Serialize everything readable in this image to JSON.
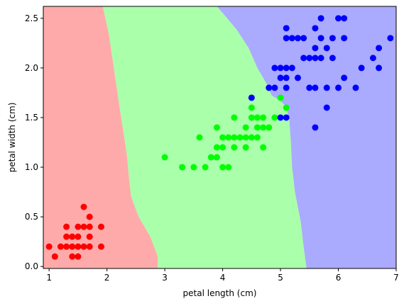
{
  "chart_data": {
    "type": "scatter",
    "xlabel": "petal length (cm)",
    "ylabel": "petal width (cm)",
    "xlim": [
      0.9,
      7.0
    ],
    "ylim": [
      -0.02,
      2.62
    ],
    "xticks": [
      1,
      2,
      3,
      4,
      5,
      6,
      7
    ],
    "yticks": [
      0.0,
      0.5,
      1.0,
      1.5,
      2.0,
      2.5
    ],
    "xtick_labels": [
      "1",
      "2",
      "3",
      "4",
      "5",
      "6",
      "7"
    ],
    "ytick_labels": [
      "0.0",
      "0.5",
      "1.0",
      "1.5",
      "2.0",
      "2.5"
    ],
    "grid": false,
    "regions": [
      {
        "color": "#ffaaaa"
      },
      {
        "color": "#aaffaa"
      },
      {
        "color": "#aaaaff"
      }
    ],
    "boundaries": {
      "red_green": [
        [
          2.88,
          -0.02
        ],
        [
          2.88,
          0.1
        ],
        [
          2.75,
          0.3
        ],
        [
          2.55,
          0.5
        ],
        [
          2.42,
          0.7
        ],
        [
          2.38,
          0.9
        ],
        [
          2.35,
          1.1
        ],
        [
          2.3,
          1.3
        ],
        [
          2.22,
          1.6
        ],
        [
          2.12,
          2.0
        ],
        [
          2.03,
          2.35
        ],
        [
          1.93,
          2.62
        ]
      ],
      "green_blue": [
        [
          5.45,
          -0.02
        ],
        [
          5.4,
          0.2
        ],
        [
          5.35,
          0.45
        ],
        [
          5.25,
          0.75
        ],
        [
          5.2,
          1.0
        ],
        [
          5.18,
          1.25
        ],
        [
          5.15,
          1.5
        ],
        [
          5.08,
          1.62
        ],
        [
          4.98,
          1.68
        ],
        [
          4.85,
          1.72
        ],
        [
          4.75,
          1.85
        ],
        [
          4.6,
          2.0
        ],
        [
          4.45,
          2.2
        ],
        [
          4.25,
          2.38
        ],
        [
          4.05,
          2.52
        ],
        [
          3.9,
          2.62
        ]
      ]
    },
    "series": [
      {
        "color": "#ff0000",
        "points": [
          [
            1.0,
            0.2
          ],
          [
            1.1,
            0.1
          ],
          [
            1.2,
            0.2
          ],
          [
            1.3,
            0.2
          ],
          [
            1.3,
            0.3
          ],
          [
            1.3,
            0.4
          ],
          [
            1.4,
            0.1
          ],
          [
            1.4,
            0.2
          ],
          [
            1.4,
            0.3
          ],
          [
            1.5,
            0.1
          ],
          [
            1.5,
            0.2
          ],
          [
            1.5,
            0.3
          ],
          [
            1.5,
            0.4
          ],
          [
            1.6,
            0.2
          ],
          [
            1.6,
            0.4
          ],
          [
            1.6,
            0.6
          ],
          [
            1.7,
            0.2
          ],
          [
            1.7,
            0.3
          ],
          [
            1.7,
            0.4
          ],
          [
            1.7,
            0.5
          ],
          [
            1.9,
            0.2
          ],
          [
            1.9,
            0.4
          ]
        ]
      },
      {
        "color": "#00ff00",
        "points": [
          [
            3.0,
            1.1
          ],
          [
            3.3,
            1.0
          ],
          [
            3.5,
            1.0
          ],
          [
            3.6,
            1.3
          ],
          [
            3.7,
            1.0
          ],
          [
            3.8,
            1.1
          ],
          [
            3.9,
            1.1
          ],
          [
            3.9,
            1.2
          ],
          [
            3.9,
            1.4
          ],
          [
            4.0,
            1.0
          ],
          [
            4.0,
            1.2
          ],
          [
            4.0,
            1.3
          ],
          [
            4.1,
            1.0
          ],
          [
            4.1,
            1.3
          ],
          [
            4.2,
            1.2
          ],
          [
            4.2,
            1.3
          ],
          [
            4.2,
            1.5
          ],
          [
            4.3,
            1.3
          ],
          [
            4.4,
            1.2
          ],
          [
            4.4,
            1.3
          ],
          [
            4.4,
            1.4
          ],
          [
            4.5,
            1.3
          ],
          [
            4.5,
            1.5
          ],
          [
            4.5,
            1.6
          ],
          [
            4.6,
            1.3
          ],
          [
            4.6,
            1.4
          ],
          [
            4.6,
            1.5
          ],
          [
            4.7,
            1.2
          ],
          [
            4.7,
            1.4
          ],
          [
            4.7,
            1.5
          ],
          [
            4.8,
            1.4
          ],
          [
            4.8,
            1.8
          ],
          [
            4.9,
            1.5
          ],
          [
            5.0,
            1.7
          ],
          [
            5.1,
            1.6
          ]
        ]
      },
      {
        "color": "#0000ff",
        "points": [
          [
            4.5,
            1.7
          ],
          [
            4.8,
            1.8
          ],
          [
            4.9,
            1.8
          ],
          [
            4.9,
            2.0
          ],
          [
            5.0,
            1.5
          ],
          [
            5.0,
            1.9
          ],
          [
            5.0,
            2.0
          ],
          [
            5.1,
            1.5
          ],
          [
            5.1,
            1.8
          ],
          [
            5.1,
            1.9
          ],
          [
            5.1,
            2.0
          ],
          [
            5.1,
            2.3
          ],
          [
            5.1,
            2.4
          ],
          [
            5.2,
            2.0
          ],
          [
            5.2,
            2.3
          ],
          [
            5.3,
            1.9
          ],
          [
            5.3,
            2.3
          ],
          [
            5.4,
            2.1
          ],
          [
            5.4,
            2.3
          ],
          [
            5.5,
            1.8
          ],
          [
            5.5,
            2.1
          ],
          [
            5.6,
            1.4
          ],
          [
            5.6,
            1.8
          ],
          [
            5.6,
            2.1
          ],
          [
            5.6,
            2.2
          ],
          [
            5.6,
            2.4
          ],
          [
            5.7,
            2.1
          ],
          [
            5.7,
            2.3
          ],
          [
            5.7,
            2.5
          ],
          [
            5.8,
            1.6
          ],
          [
            5.8,
            1.8
          ],
          [
            5.8,
            2.2
          ],
          [
            5.9,
            2.1
          ],
          [
            5.9,
            2.3
          ],
          [
            6.0,
            1.8
          ],
          [
            6.0,
            2.5
          ],
          [
            6.1,
            1.9
          ],
          [
            6.1,
            2.3
          ],
          [
            6.1,
            2.5
          ],
          [
            6.3,
            1.8
          ],
          [
            6.4,
            2.0
          ],
          [
            6.6,
            2.1
          ],
          [
            6.7,
            2.0
          ],
          [
            6.7,
            2.2
          ],
          [
            6.9,
            2.3
          ]
        ]
      }
    ]
  }
}
